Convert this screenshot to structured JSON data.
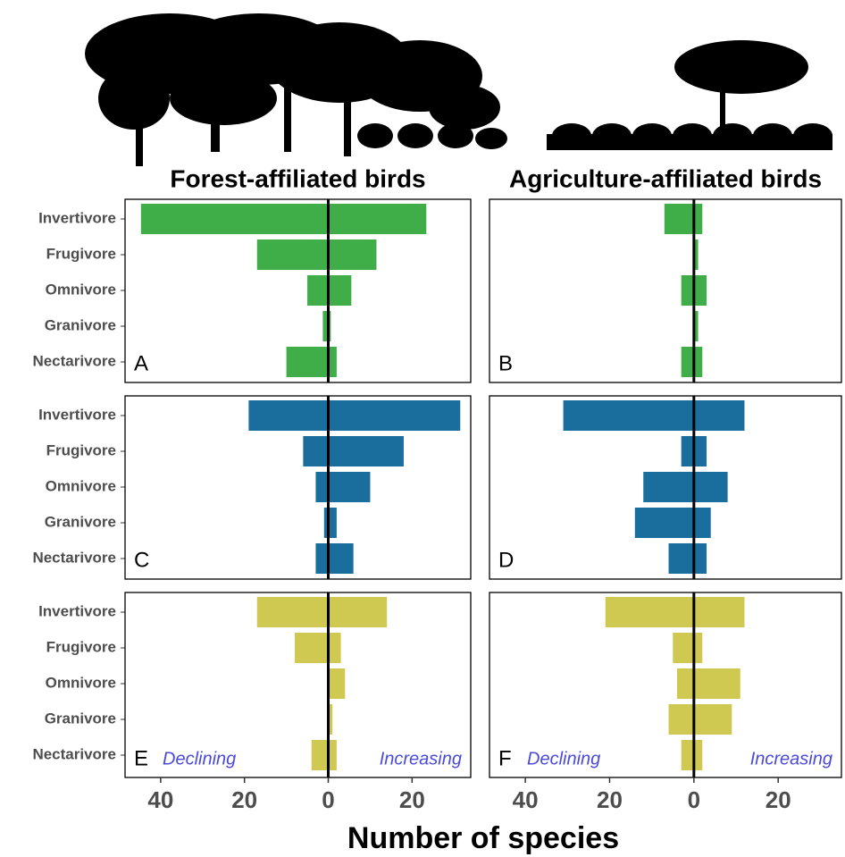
{
  "chart_data": [
    {
      "type": "bar",
      "orientation": "horizontal",
      "title": "Forest-affiliated birds",
      "panel_label": "A",
      "color": "#3fae49",
      "categories": [
        "Invertivore",
        "Frugivore",
        "Omnivore",
        "Granivore",
        "Nectarivore"
      ],
      "series": [
        {
          "values": [
            -44.7,
            -17,
            -5,
            -1.3,
            -10
          ]
        },
        {
          "values": [
            23.4,
            11.5,
            5.5,
            0.6,
            2
          ]
        }
      ],
      "xlim": [
        -48.5,
        34
      ]
    },
    {
      "type": "bar",
      "orientation": "horizontal",
      "title": "Agriculture-affiliated birds",
      "panel_label": "B",
      "color": "#3fae49",
      "series": [
        {
          "values": [
            -7,
            0,
            -3,
            0,
            -3
          ]
        },
        {
          "values": [
            2,
            1,
            3,
            1,
            2
          ]
        }
      ],
      "xlim": [
        -48.5,
        35
      ]
    },
    {
      "type": "bar",
      "orientation": "horizontal",
      "panel_label": "C",
      "color": "#1a6e9e",
      "categories": [
        "Invertivore",
        "Frugivore",
        "Omnivore",
        "Granivore",
        "Nectarivore"
      ],
      "series": [
        {
          "values": [
            -19,
            -6,
            -3,
            -1,
            -3
          ]
        },
        {
          "values": [
            31.5,
            18,
            10,
            2,
            6
          ]
        }
      ],
      "xlim": [
        -48.5,
        34
      ]
    },
    {
      "type": "bar",
      "orientation": "horizontal",
      "panel_label": "D",
      "color": "#1a6e9e",
      "series": [
        {
          "values": [
            -31,
            -3,
            -12,
            -14,
            -6
          ]
        },
        {
          "values": [
            12,
            3,
            8,
            4,
            3
          ]
        }
      ],
      "xlim": [
        -48.5,
        35
      ]
    },
    {
      "type": "bar",
      "orientation": "horizontal",
      "panel_label": "E",
      "color": "#cfc951",
      "categories": [
        "Invertivore",
        "Frugivore",
        "Omnivore",
        "Granivore",
        "Nectarivore"
      ],
      "series": [
        {
          "name": "Declining",
          "values": [
            -17,
            -8,
            0,
            0,
            -4
          ]
        },
        {
          "name": "Increasing",
          "values": [
            14,
            3,
            4,
            1,
            2
          ]
        }
      ],
      "xlim": [
        -48.5,
        34
      ],
      "xticks": [
        {
          "value": -40,
          "label": "40"
        },
        {
          "value": -20,
          "label": "20"
        },
        0,
        20
      ],
      "xlabel": "Number of species"
    },
    {
      "type": "bar",
      "orientation": "horizontal",
      "panel_label": "F",
      "color": "#cfc951",
      "series": [
        {
          "name": "Declining",
          "values": [
            -21,
            -5,
            -4,
            -6,
            -3
          ]
        },
        {
          "name": "Increasing",
          "values": [
            12,
            2,
            11,
            9,
            2
          ]
        }
      ],
      "xlim": [
        -48.5,
        35
      ],
      "xticks": [
        {
          "value": -40,
          "label": "40"
        },
        {
          "value": -20,
          "label": "20"
        },
        0,
        20
      ]
    }
  ]
}
